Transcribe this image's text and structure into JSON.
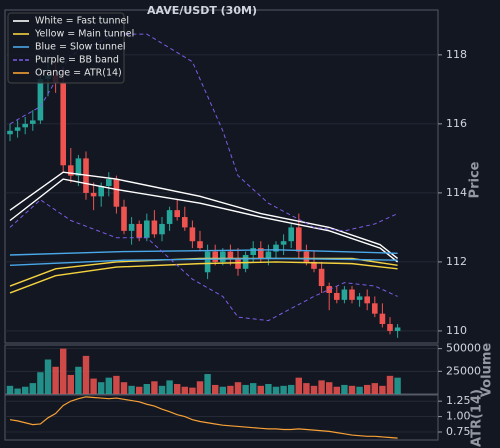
{
  "chart_data": {
    "type": "candlestick",
    "title": "AAVE/USDT (30M)",
    "y_label": "Price",
    "volume_label": "Volume",
    "atr_label": "ATR(14)",
    "ylim": [
      109.65,
      119.3
    ],
    "yticks": [
      110,
      112,
      114,
      116,
      118
    ],
    "volume_ylim": [
      0,
      54000
    ],
    "volume_yticks": [
      25000,
      50000
    ],
    "atr_ylim": [
      0.62,
      1.35
    ],
    "atr_yticks": [
      0.75,
      {
        "value": 1,
        "label": "1.00"
      },
      1.25
    ],
    "grid": true,
    "legend": "upper left",
    "up_color": "#26a69a",
    "down_color": "#ef5350",
    "candles": {
      "open": [
        115.7,
        115.8,
        115.9,
        116.0,
        116.1,
        117.3,
        117.4,
        117.2,
        114.8,
        114.5,
        115.0,
        114.0,
        113.9,
        114.2,
        114.4,
        113.6,
        112.9,
        113.1,
        112.7,
        113.2,
        112.8,
        113.1,
        113.5,
        113.3,
        113.0,
        112.6,
        111.7,
        112.3,
        112.0,
        112.3,
        112.1,
        111.8,
        112.2,
        112.4,
        112.1,
        112.3,
        112.5,
        112.6,
        113.0,
        112.3,
        112.0,
        111.8,
        111.3,
        111.1,
        110.9,
        111.2,
        110.9,
        111.0,
        110.8,
        110.5,
        110.2,
        110.0
      ],
      "high": [
        116.0,
        116.1,
        116.2,
        116.4,
        117.6,
        118.0,
        117.9,
        117.6,
        115.3,
        115.1,
        115.2,
        114.3,
        114.3,
        114.6,
        114.5,
        113.8,
        113.3,
        113.2,
        113.4,
        113.5,
        113.3,
        113.6,
        113.8,
        113.6,
        113.2,
        112.9,
        112.5,
        112.5,
        112.4,
        112.5,
        112.4,
        112.3,
        112.6,
        112.6,
        112.5,
        112.6,
        112.8,
        113.1,
        113.4,
        112.5,
        112.3,
        112.0,
        111.4,
        111.3,
        111.3,
        111.3,
        111.1,
        111.2,
        111.0,
        110.8,
        110.4,
        110.2
      ],
      "low": [
        115.5,
        115.6,
        115.7,
        115.8,
        116.0,
        116.8,
        116.9,
        114.6,
        114.3,
        114.2,
        113.8,
        113.5,
        113.6,
        113.9,
        113.4,
        112.8,
        112.5,
        112.6,
        112.6,
        112.7,
        112.6,
        112.9,
        113.2,
        112.9,
        112.4,
        112.3,
        111.5,
        111.9,
        111.9,
        111.9,
        111.6,
        111.7,
        112.0,
        112.0,
        111.9,
        112.1,
        112.2,
        112.4,
        112.1,
        111.9,
        111.7,
        111.1,
        110.6,
        110.8,
        110.8,
        110.8,
        110.7,
        110.6,
        110.4,
        110.1,
        109.9,
        109.8
      ],
      "close": [
        115.8,
        115.9,
        116.0,
        116.1,
        117.3,
        117.4,
        117.2,
        114.8,
        114.5,
        115.0,
        114.0,
        113.9,
        114.2,
        114.4,
        113.6,
        112.9,
        113.1,
        112.7,
        113.2,
        112.8,
        113.1,
        113.5,
        113.3,
        113.0,
        112.6,
        112.4,
        112.3,
        112.0,
        112.3,
        112.1,
        111.8,
        112.2,
        112.4,
        112.1,
        112.3,
        112.5,
        112.6,
        113.0,
        112.3,
        112.0,
        111.8,
        111.3,
        111.1,
        110.9,
        111.2,
        110.9,
        111.0,
        110.8,
        110.5,
        110.2,
        110.0,
        110.1
      ],
      "volume": [
        9000,
        6000,
        8000,
        12000,
        24000,
        38000,
        30000,
        50000,
        21000,
        30000,
        42000,
        17000,
        13000,
        18000,
        20000,
        13000,
        9000,
        8000,
        11000,
        14000,
        9000,
        15000,
        11000,
        8000,
        7000,
        14000,
        22000,
        10000,
        8000,
        9000,
        13000,
        10000,
        12000,
        9000,
        11000,
        8000,
        9000,
        10000,
        18000,
        12000,
        9000,
        15000,
        13000,
        8000,
        10000,
        9000,
        8000,
        10000,
        12000,
        9000,
        20000,
        18000
      ]
    },
    "atr": [
      0.95,
      0.93,
      0.9,
      0.87,
      0.88,
      0.98,
      1.05,
      1.18,
      1.25,
      1.29,
      1.32,
      1.31,
      1.3,
      1.29,
      1.3,
      1.28,
      1.26,
      1.24,
      1.2,
      1.17,
      1.12,
      1.08,
      1.03,
      1.0,
      0.95,
      0.92,
      0.9,
      0.88,
      0.86,
      0.85,
      0.84,
      0.83,
      0.82,
      0.81,
      0.8,
      0.8,
      0.79,
      0.79,
      0.8,
      0.79,
      0.78,
      0.77,
      0.76,
      0.74,
      0.72,
      0.7,
      0.69,
      0.68,
      0.68,
      0.67,
      0.66,
      0.65
    ],
    "atr_color": "#f7a035",
    "overlays": [
      {
        "name": "White = Fast tunnel",
        "color": "#ffffff",
        "dashed": false,
        "x": [
          0,
          7,
          14,
          25,
          33,
          42,
          48.7,
          51
        ],
        "upper": [
          113.5,
          114.6,
          114.4,
          113.9,
          113.4,
          113.0,
          112.5,
          112.1
        ],
        "lower": [
          113.2,
          114.4,
          114.1,
          113.7,
          113.3,
          112.9,
          112.4,
          112.0
        ]
      },
      {
        "name": "Yellow = Main tunnel",
        "color": "#f5d33f",
        "dashed": false,
        "x": [
          0,
          6,
          14,
          25,
          35,
          45,
          51
        ],
        "upper": [
          111.3,
          111.8,
          112.0,
          112.1,
          112.1,
          112.1,
          111.9
        ],
        "lower": [
          111.1,
          111.6,
          111.85,
          111.95,
          112.0,
          111.95,
          111.8
        ]
      },
      {
        "name": "Blue = Slow tunnel",
        "color": "#4aa8e8",
        "dashed": false,
        "x": [
          0,
          15,
          35,
          51
        ],
        "upper": [
          112.2,
          112.3,
          112.35,
          112.25
        ],
        "lower": [
          111.9,
          112.05,
          112.1,
          112.05
        ]
      },
      {
        "name": "Purple = BB band",
        "color": "#7b5ce6",
        "dashed": true,
        "x": [
          0,
          4,
          8,
          14,
          18,
          24,
          28,
          30,
          34,
          40,
          44,
          48,
          51
        ],
        "upper": [
          116.0,
          116.5,
          118.0,
          118.6,
          118.6,
          117.8,
          115.8,
          114.5,
          113.7,
          113.0,
          112.9,
          113.1,
          113.4
        ],
        "lower": [
          113.0,
          113.8,
          113.2,
          112.7,
          112.7,
          111.5,
          111.0,
          110.4,
          110.3,
          111.0,
          111.4,
          111.3,
          111.0
        ]
      },
      {
        "name": "Orange = ATR(14)",
        "color": "#f7a035",
        "dashed": false
      }
    ]
  }
}
